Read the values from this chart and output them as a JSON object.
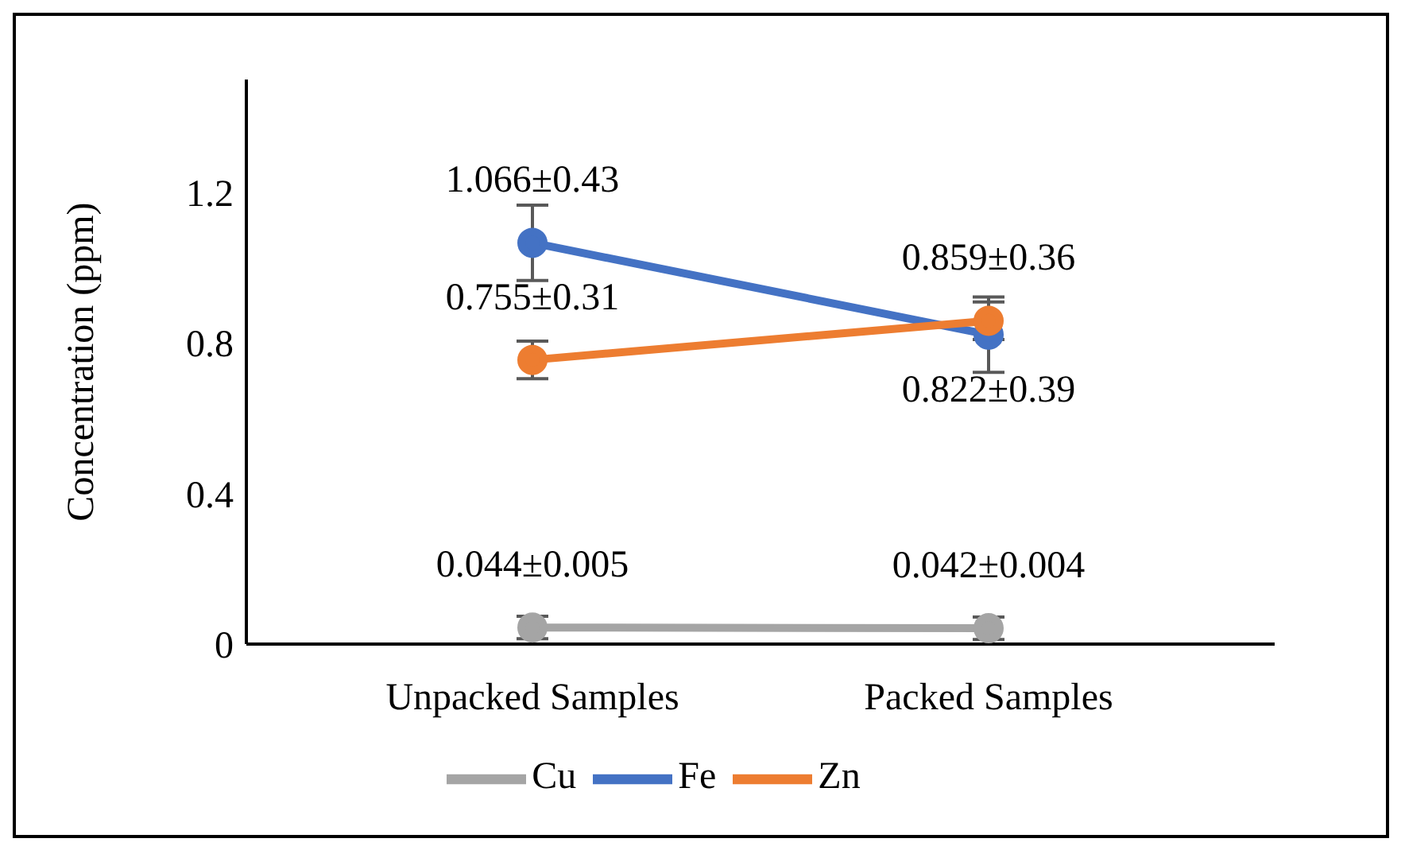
{
  "chart_data": {
    "type": "line",
    "ylabel": "Concentration (ppm)",
    "categories": [
      "Unpacked Samples",
      "Packed Samples"
    ],
    "series": [
      {
        "name": "Fe",
        "color": "#4472c4",
        "values": [
          1.066,
          0.822
        ],
        "errors": [
          0.1,
          0.1
        ],
        "value_labels": [
          "1.066±0.43",
          "0.822±0.39"
        ]
      },
      {
        "name": "Zn",
        "color": "#ed7d31",
        "values": [
          0.755,
          0.859
        ],
        "errors": [
          0.05,
          0.05
        ],
        "value_labels": [
          "0.755±0.31",
          "0.859±0.36"
        ]
      },
      {
        "name": "Cu",
        "color": "#a5a5a5",
        "values": [
          0.044,
          0.042
        ],
        "errors": [
          0.03,
          0.03
        ],
        "value_labels": [
          "0.044±0.005",
          "0.042±0.004"
        ]
      }
    ],
    "ylim": [
      0,
      1.5
    ],
    "yticks": [
      0,
      0.4,
      0.8,
      1.2
    ],
    "grid": false,
    "legend": "bottom",
    "marker": "circle",
    "line_style": "solid"
  }
}
